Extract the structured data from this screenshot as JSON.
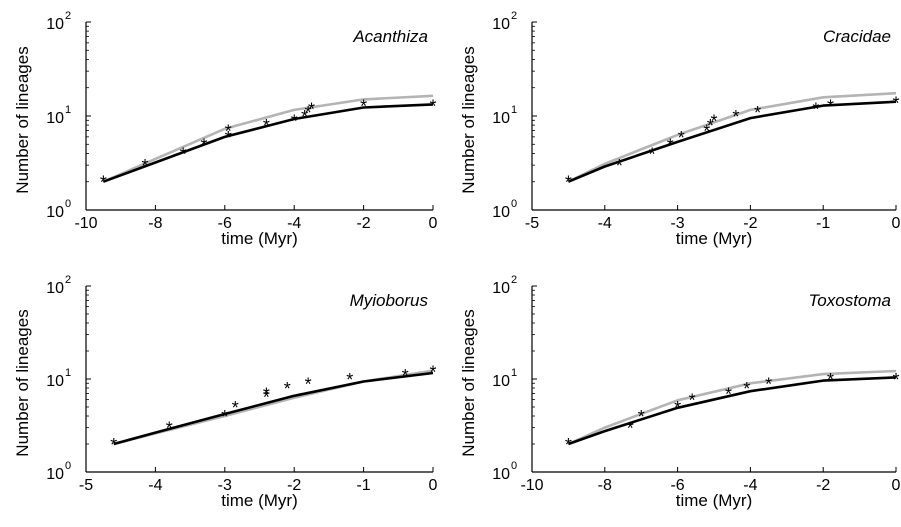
{
  "chart_data": [
    {
      "type": "line",
      "title": "Acanthiza",
      "xlabel": "time (Myr)",
      "ylabel": "Number of lineages",
      "xlim": [
        -10,
        0
      ],
      "ylim": [
        1,
        100
      ],
      "yscale": "log",
      "xticks": [
        "-10",
        "-8",
        "-6",
        "-4",
        "-2",
        "0"
      ],
      "observed": {
        "x": [
          -9.5,
          -8.3,
          -7.2,
          -6.6,
          -5.9,
          -5.9,
          -4.8,
          -4.0,
          -3.7,
          -3.6,
          -3.5,
          -2.0,
          0.0
        ],
        "y": [
          2,
          3,
          4,
          5,
          6,
          7,
          8,
          9,
          10,
          11,
          12,
          13,
          13
        ]
      },
      "series": [
        {
          "color": "#000000",
          "x": [
            -9.5,
            -8,
            -6,
            -4,
            -2,
            0
          ],
          "y": [
            2,
            3.2,
            6,
            9.3,
            12.3,
            13.3
          ]
        },
        {
          "color": "#b4b4b4",
          "x": [
            -9.5,
            -8,
            -6,
            -4,
            -2,
            0
          ],
          "y": [
            2,
            3.5,
            7.3,
            11.6,
            15,
            16.4
          ]
        }
      ]
    },
    {
      "type": "line",
      "title": "Cracidae",
      "xlabel": "time (Myr)",
      "ylabel": "Number of lineages",
      "xlim": [
        -5,
        0
      ],
      "ylim": [
        1,
        100
      ],
      "yscale": "log",
      "xticks": [
        "-5",
        "-4",
        "-3",
        "-2",
        "-1",
        "0"
      ],
      "observed": {
        "x": [
          -4.5,
          -3.8,
          -3.35,
          -3.1,
          -2.95,
          -2.6,
          -2.55,
          -2.5,
          -2.2,
          -1.9,
          -1.1,
          -0.9,
          0.0
        ],
        "y": [
          2,
          3,
          4,
          5,
          6,
          7,
          8,
          9,
          10,
          11,
          12,
          13,
          14
        ]
      },
      "series": [
        {
          "color": "#000000",
          "x": [
            -4.5,
            -4,
            -3,
            -2,
            -1,
            0
          ],
          "y": [
            2,
            2.9,
            5.3,
            9.5,
            12.9,
            14.2
          ]
        },
        {
          "color": "#b4b4b4",
          "x": [
            -4.5,
            -4,
            -3,
            -2,
            -1,
            0
          ],
          "y": [
            2,
            3.1,
            6.3,
            11.6,
            15.8,
            17.5
          ]
        }
      ]
    },
    {
      "type": "line",
      "title": "Myioborus",
      "xlabel": "time (Myr)",
      "ylabel": "Number of lineages",
      "xlim": [
        -5,
        0
      ],
      "ylim": [
        1,
        100
      ],
      "yscale": "log",
      "xticks": [
        "-5",
        "-4",
        "-3",
        "-2",
        "-1",
        "0"
      ],
      "observed": {
        "x": [
          -4.6,
          -3.8,
          -3.0,
          -2.85,
          -2.4,
          -2.4,
          -2.1,
          -1.8,
          -1.2,
          -0.4,
          0.0
        ],
        "y": [
          2,
          3,
          4,
          5,
          6.5,
          7,
          8,
          9,
          10,
          11,
          12
        ]
      },
      "series": [
        {
          "color": "#000000",
          "x": [
            -4.6,
            -4,
            -3,
            -2,
            -1,
            0
          ],
          "y": [
            2,
            2.65,
            4.2,
            6.6,
            9.4,
            11.6
          ]
        },
        {
          "color": "#b4b4b4",
          "x": [
            -4.6,
            -4,
            -3,
            -2,
            -1,
            0
          ],
          "y": [
            2,
            2.6,
            4.0,
            6.3,
            9.4,
            12.3
          ]
        }
      ]
    },
    {
      "type": "line",
      "title": "Toxostoma",
      "xlabel": "time (Myr)",
      "ylabel": "Number of lineages",
      "xlim": [
        -10,
        0
      ],
      "ylim": [
        1,
        100
      ],
      "yscale": "log",
      "xticks": [
        "-10",
        "-8",
        "-6",
        "-4",
        "-2",
        "0"
      ],
      "observed": {
        "x": [
          -9.0,
          -7.3,
          -7.0,
          -6.0,
          -5.6,
          -4.6,
          -4.1,
          -3.5,
          -1.8,
          0.0
        ],
        "y": [
          2,
          3,
          4,
          5,
          6,
          7,
          8,
          9,
          10,
          10
        ]
      },
      "series": [
        {
          "color": "#000000",
          "x": [
            -9,
            -8,
            -6,
            -4,
            -2,
            0
          ],
          "y": [
            2,
            2.75,
            4.9,
            7.4,
            9.6,
            10.4
          ]
        },
        {
          "color": "#b4b4b4",
          "x": [
            -9,
            -8,
            -6,
            -4,
            -2,
            0
          ],
          "y": [
            2,
            3.0,
            5.9,
            9.0,
            11.3,
            12.2
          ]
        }
      ]
    }
  ],
  "yticks": [
    {
      "base": "10",
      "exp": "0"
    },
    {
      "base": "10",
      "exp": "1"
    },
    {
      "base": "10",
      "exp": "2"
    }
  ]
}
